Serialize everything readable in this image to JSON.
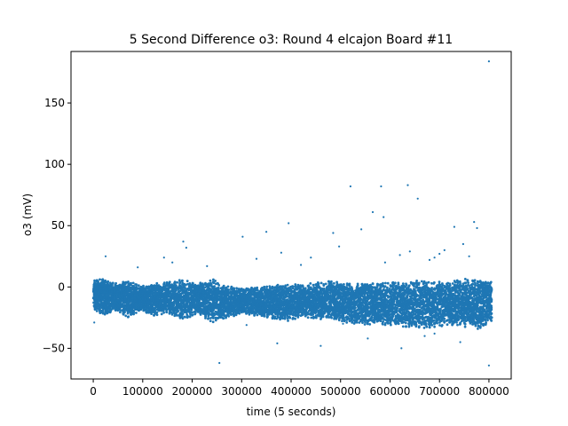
{
  "chart_data": {
    "type": "scatter",
    "title": "5 Second Difference o3: Round 4 elcajon Board #11",
    "xlabel": "time (5 seconds)",
    "ylabel": "o3 (mV)",
    "xlim": [
      -45000,
      845000
    ],
    "ylim": [
      -75,
      192
    ],
    "xticks": [
      0,
      100000,
      200000,
      300000,
      400000,
      500000,
      600000,
      700000,
      800000
    ],
    "yticks": [
      -50,
      0,
      50,
      100,
      150
    ],
    "grid": false,
    "legend": "none",
    "color": "#1f77b4",
    "band_segments": [
      [
        0,
        -13,
        10
      ],
      [
        20000,
        -18,
        12
      ],
      [
        45000,
        -14,
        8
      ],
      [
        70000,
        -20,
        10
      ],
      [
        95000,
        -14,
        6
      ],
      [
        120000,
        -19,
        8
      ],
      [
        150000,
        -16,
        9
      ],
      [
        180000,
        -22,
        11
      ],
      [
        210000,
        -18,
        8
      ],
      [
        240000,
        -24,
        12
      ],
      [
        270000,
        -20,
        6
      ],
      [
        300000,
        -17,
        4
      ],
      [
        330000,
        -19,
        5
      ],
      [
        360000,
        -21,
        6
      ],
      [
        390000,
        -23,
        8
      ],
      [
        420000,
        -20,
        7
      ],
      [
        450000,
        -22,
        9
      ],
      [
        480000,
        -21,
        10
      ],
      [
        510000,
        -24,
        8
      ],
      [
        540000,
        -26,
        9
      ],
      [
        570000,
        -27,
        8
      ],
      [
        600000,
        -26,
        10
      ],
      [
        630000,
        -28,
        9
      ],
      [
        660000,
        -30,
        11
      ],
      [
        690000,
        -28,
        9
      ],
      [
        720000,
        -26,
        10
      ],
      [
        750000,
        -28,
        12
      ],
      [
        780000,
        -30,
        12
      ],
      [
        805000,
        -23,
        10
      ]
    ],
    "spikes": [
      [
        2000,
        -29
      ],
      [
        25000,
        25
      ],
      [
        143000,
        24
      ],
      [
        182000,
        37
      ],
      [
        188000,
        32
      ],
      [
        255000,
        -62
      ],
      [
        302000,
        41
      ],
      [
        350000,
        45
      ],
      [
        372000,
        -46
      ],
      [
        380000,
        28
      ],
      [
        395000,
        52
      ],
      [
        460000,
        -48
      ],
      [
        485000,
        44
      ],
      [
        497000,
        33
      ],
      [
        520000,
        82
      ],
      [
        542000,
        47
      ],
      [
        565000,
        61
      ],
      [
        582000,
        82
      ],
      [
        587000,
        57
      ],
      [
        623000,
        -50
      ],
      [
        636000,
        83
      ],
      [
        656000,
        72
      ],
      [
        670000,
        -40
      ],
      [
        730000,
        49
      ],
      [
        742000,
        -45
      ],
      [
        748000,
        35
      ],
      [
        770000,
        53
      ],
      [
        776000,
        48
      ],
      [
        800000,
        184
      ],
      [
        800000,
        -64
      ],
      [
        620000,
        26
      ],
      [
        690000,
        24
      ],
      [
        710000,
        30
      ],
      [
        760000,
        25
      ],
      [
        640000,
        29
      ],
      [
        700000,
        27
      ],
      [
        590000,
        20
      ],
      [
        420000,
        18
      ],
      [
        330000,
        23
      ],
      [
        90000,
        16
      ],
      [
        160000,
        20
      ],
      [
        230000,
        17
      ],
      [
        555000,
        -42
      ],
      [
        690000,
        -38
      ],
      [
        505000,
        -30
      ],
      [
        310000,
        -31
      ],
      [
        440000,
        24
      ],
      [
        680000,
        22
      ]
    ]
  }
}
